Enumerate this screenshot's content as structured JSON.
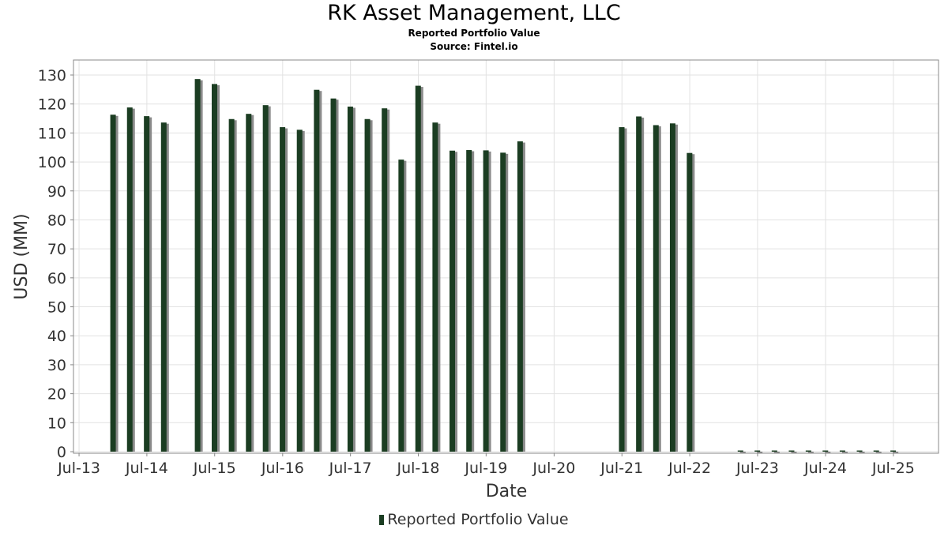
{
  "chart_data": {
    "type": "bar",
    "title": "RK Asset Management, LLC",
    "subtitle_lines": [
      "Reported Portfolio Value",
      "Source: Fintel.io"
    ],
    "xlabel": "Date",
    "ylabel": "USD (MM)",
    "ylim": [
      0,
      135
    ],
    "yticks": [
      0,
      10,
      20,
      30,
      40,
      50,
      60,
      70,
      80,
      90,
      100,
      110,
      120,
      130
    ],
    "xticks": [
      "Jul-13",
      "Jul-14",
      "Jul-15",
      "Jul-16",
      "Jul-17",
      "Jul-18",
      "Jul-19",
      "Jul-20",
      "Jul-21",
      "Jul-22",
      "Jul-23",
      "Jul-24",
      "Jul-25"
    ],
    "grid": true,
    "legend_position": "bottom",
    "series": [
      {
        "name": "Reported Portfolio Value",
        "color": "#1b3d22",
        "points": [
          {
            "date": "2013-12-31",
            "value": 116.3
          },
          {
            "date": "2014-03-31",
            "value": 118.8
          },
          {
            "date": "2014-06-30",
            "value": 115.8
          },
          {
            "date": "2014-09-30",
            "value": 113.6
          },
          {
            "date": "2015-03-31",
            "value": 128.6
          },
          {
            "date": "2015-06-30",
            "value": 126.9
          },
          {
            "date": "2015-09-30",
            "value": 114.8
          },
          {
            "date": "2015-12-31",
            "value": 116.6
          },
          {
            "date": "2016-03-31",
            "value": 119.6
          },
          {
            "date": "2016-06-30",
            "value": 112.0
          },
          {
            "date": "2016-09-30",
            "value": 111.1
          },
          {
            "date": "2016-12-31",
            "value": 124.9
          },
          {
            "date": "2017-03-31",
            "value": 121.9
          },
          {
            "date": "2017-06-30",
            "value": 119.1
          },
          {
            "date": "2017-09-30",
            "value": 114.8
          },
          {
            "date": "2017-12-31",
            "value": 118.5
          },
          {
            "date": "2018-03-31",
            "value": 100.8
          },
          {
            "date": "2018-06-30",
            "value": 126.3
          },
          {
            "date": "2018-09-30",
            "value": 113.6
          },
          {
            "date": "2018-12-31",
            "value": 103.9
          },
          {
            "date": "2019-03-31",
            "value": 104.1
          },
          {
            "date": "2019-06-30",
            "value": 104.0
          },
          {
            "date": "2019-09-30",
            "value": 103.2
          },
          {
            "date": "2019-12-31",
            "value": 107.1
          },
          {
            "date": "2021-06-30",
            "value": 112.0
          },
          {
            "date": "2021-09-30",
            "value": 115.7
          },
          {
            "date": "2021-12-31",
            "value": 112.7
          },
          {
            "date": "2022-03-31",
            "value": 113.3
          },
          {
            "date": "2022-06-30",
            "value": 103.1
          },
          {
            "date": "2023-03-31",
            "value": 0
          },
          {
            "date": "2023-06-30",
            "value": 0
          },
          {
            "date": "2023-09-30",
            "value": 0
          },
          {
            "date": "2023-12-31",
            "value": 0
          },
          {
            "date": "2024-03-31",
            "value": 0
          },
          {
            "date": "2024-06-30",
            "value": 0
          },
          {
            "date": "2024-09-30",
            "value": 0
          },
          {
            "date": "2024-12-31",
            "value": 0
          },
          {
            "date": "2025-03-31",
            "value": 0
          },
          {
            "date": "2025-06-30",
            "value": 0
          }
        ]
      }
    ]
  }
}
